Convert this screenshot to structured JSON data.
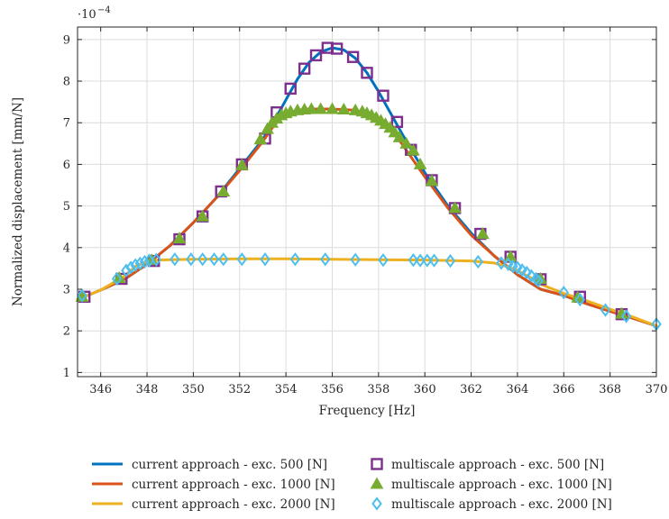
{
  "chart_data": {
    "type": "line",
    "title": "",
    "xlabel": "Frequency [Hz]",
    "ylabel": "Normalized displacement [mm/N]",
    "y_exponent_label": "·10",
    "y_exponent_power": "−4",
    "xlim": [
      345,
      370
    ],
    "ylim": [
      0.9,
      9.3
    ],
    "x_ticks": [
      346,
      348,
      350,
      352,
      354,
      356,
      358,
      360,
      362,
      364,
      366,
      368,
      370
    ],
    "y_ticks": [
      1,
      2,
      3,
      4,
      5,
      6,
      7,
      8,
      9
    ],
    "grid": true,
    "legend_position": "bottom",
    "series": [
      {
        "name": "current approach - exc. 500 [N]",
        "style": "line",
        "color": "#0072BD",
        "x": [
          345,
          346,
          347,
          348,
          349,
          350,
          351,
          352,
          353,
          353.5,
          354,
          354.5,
          355,
          355.5,
          356,
          356.5,
          357,
          357.5,
          358,
          358.5,
          359,
          360,
          361,
          362,
          363,
          364,
          365,
          366,
          367,
          368,
          369,
          370
        ],
        "y": [
          2.75,
          2.98,
          3.23,
          3.6,
          4.05,
          4.6,
          5.2,
          5.9,
          6.6,
          7.05,
          7.55,
          8.05,
          8.45,
          8.7,
          8.8,
          8.75,
          8.55,
          8.2,
          7.75,
          7.25,
          6.75,
          5.8,
          5.0,
          4.35,
          3.8,
          3.35,
          3.0,
          2.85,
          2.65,
          2.47,
          2.3,
          2.12
        ]
      },
      {
        "name": "current approach - exc. 1000 [N]",
        "style": "line",
        "color": "#D95319",
        "x": [
          345,
          346,
          347,
          348,
          349,
          350,
          351,
          352,
          353,
          353.5,
          354,
          354.5,
          355,
          356,
          357,
          357.5,
          358,
          358.5,
          359,
          359.5,
          360,
          361,
          362,
          363,
          364,
          365,
          366,
          367,
          368,
          369,
          370
        ],
        "y": [
          2.75,
          2.98,
          3.23,
          3.6,
          4.05,
          4.6,
          5.2,
          5.85,
          6.55,
          6.95,
          7.2,
          7.3,
          7.33,
          7.33,
          7.3,
          7.22,
          7.08,
          6.85,
          6.5,
          6.1,
          5.7,
          4.95,
          4.3,
          3.8,
          3.35,
          3.0,
          2.85,
          2.65,
          2.47,
          2.3,
          2.12
        ]
      },
      {
        "name": "current approach - exc. 2000 [N]",
        "style": "line",
        "color": "#EDB120",
        "x": [
          345,
          346,
          347,
          347.5,
          348,
          348.5,
          349,
          350,
          352,
          354,
          356,
          358,
          360,
          362,
          363,
          363.5,
          364,
          364.5,
          365,
          366,
          367,
          368,
          369,
          370
        ],
        "y": [
          2.75,
          2.98,
          3.3,
          3.55,
          3.66,
          3.7,
          3.71,
          3.72,
          3.73,
          3.73,
          3.72,
          3.71,
          3.7,
          3.68,
          3.63,
          3.55,
          3.45,
          3.3,
          3.12,
          2.9,
          2.72,
          2.52,
          2.33,
          2.12
        ]
      },
      {
        "name": "multiscale approach - exc. 500 [N]",
        "style": "marker",
        "marker": "square",
        "color": "#7E2F8E",
        "x": [
          345.3,
          346.9,
          348.3,
          349.4,
          350.4,
          351.2,
          352.1,
          353.1,
          353.6,
          354.2,
          354.8,
          355.3,
          355.8,
          356.2,
          356.9,
          357.5,
          358.2,
          358.8,
          359.4,
          360.3,
          361.3,
          362.4,
          363.7,
          365.0,
          366.7,
          368.5
        ],
        "y": [
          2.82,
          3.25,
          3.68,
          4.2,
          4.75,
          5.35,
          6.0,
          6.62,
          7.25,
          7.82,
          8.3,
          8.62,
          8.8,
          8.78,
          8.58,
          8.2,
          7.65,
          7.02,
          6.35,
          5.62,
          4.95,
          4.33,
          3.78,
          3.24,
          2.82,
          2.4
        ]
      },
      {
        "name": "multiscale approach - exc. 1000 [N]",
        "style": "marker",
        "marker": "triangle",
        "color": "#77AC30",
        "x": [
          345.2,
          346.8,
          348.2,
          349.4,
          350.4,
          351.3,
          352.1,
          352.9,
          353.2,
          353.4,
          353.6,
          353.8,
          354.0,
          354.2,
          354.5,
          354.8,
          355.1,
          355.5,
          356.0,
          356.5,
          357.0,
          357.3,
          357.5,
          357.7,
          357.9,
          358.1,
          358.3,
          358.5,
          358.7,
          358.9,
          359.2,
          359.5,
          359.8,
          360.3,
          361.3,
          362.5,
          363.7,
          365.0,
          366.6,
          368.5
        ],
        "y": [
          2.82,
          3.27,
          3.7,
          4.22,
          4.75,
          5.35,
          5.98,
          6.6,
          6.85,
          7.0,
          7.1,
          7.18,
          7.23,
          7.27,
          7.3,
          7.32,
          7.33,
          7.33,
          7.33,
          7.32,
          7.3,
          7.27,
          7.23,
          7.18,
          7.12,
          7.05,
          6.97,
          6.88,
          6.77,
          6.65,
          6.5,
          6.33,
          6.0,
          5.6,
          4.95,
          4.33,
          3.78,
          3.25,
          2.8,
          2.41
        ]
      },
      {
        "name": "multiscale approach - exc. 2000 [N]",
        "style": "marker",
        "marker": "diamond",
        "color": "#4DBEEE",
        "x": [
          345.2,
          346.7,
          347.1,
          347.3,
          347.5,
          347.7,
          347.9,
          348.1,
          348.4,
          349.2,
          349.9,
          350.4,
          350.9,
          351.3,
          352.1,
          353.1,
          354.4,
          355.7,
          357.0,
          358.2,
          359.5,
          359.8,
          360.1,
          360.4,
          361.1,
          362.3,
          363.3,
          363.6,
          363.8,
          364.0,
          364.2,
          364.4,
          364.6,
          364.8,
          364.9,
          366.0,
          366.7,
          367.8,
          368.7,
          370.0
        ],
        "y": [
          2.85,
          3.25,
          3.45,
          3.52,
          3.58,
          3.62,
          3.66,
          3.69,
          3.71,
          3.72,
          3.72,
          3.72,
          3.72,
          3.72,
          3.72,
          3.72,
          3.72,
          3.72,
          3.71,
          3.7,
          3.7,
          3.69,
          3.69,
          3.69,
          3.68,
          3.66,
          3.63,
          3.6,
          3.55,
          3.52,
          3.46,
          3.4,
          3.32,
          3.25,
          3.2,
          2.92,
          2.75,
          2.5,
          2.35,
          2.16
        ]
      }
    ]
  }
}
